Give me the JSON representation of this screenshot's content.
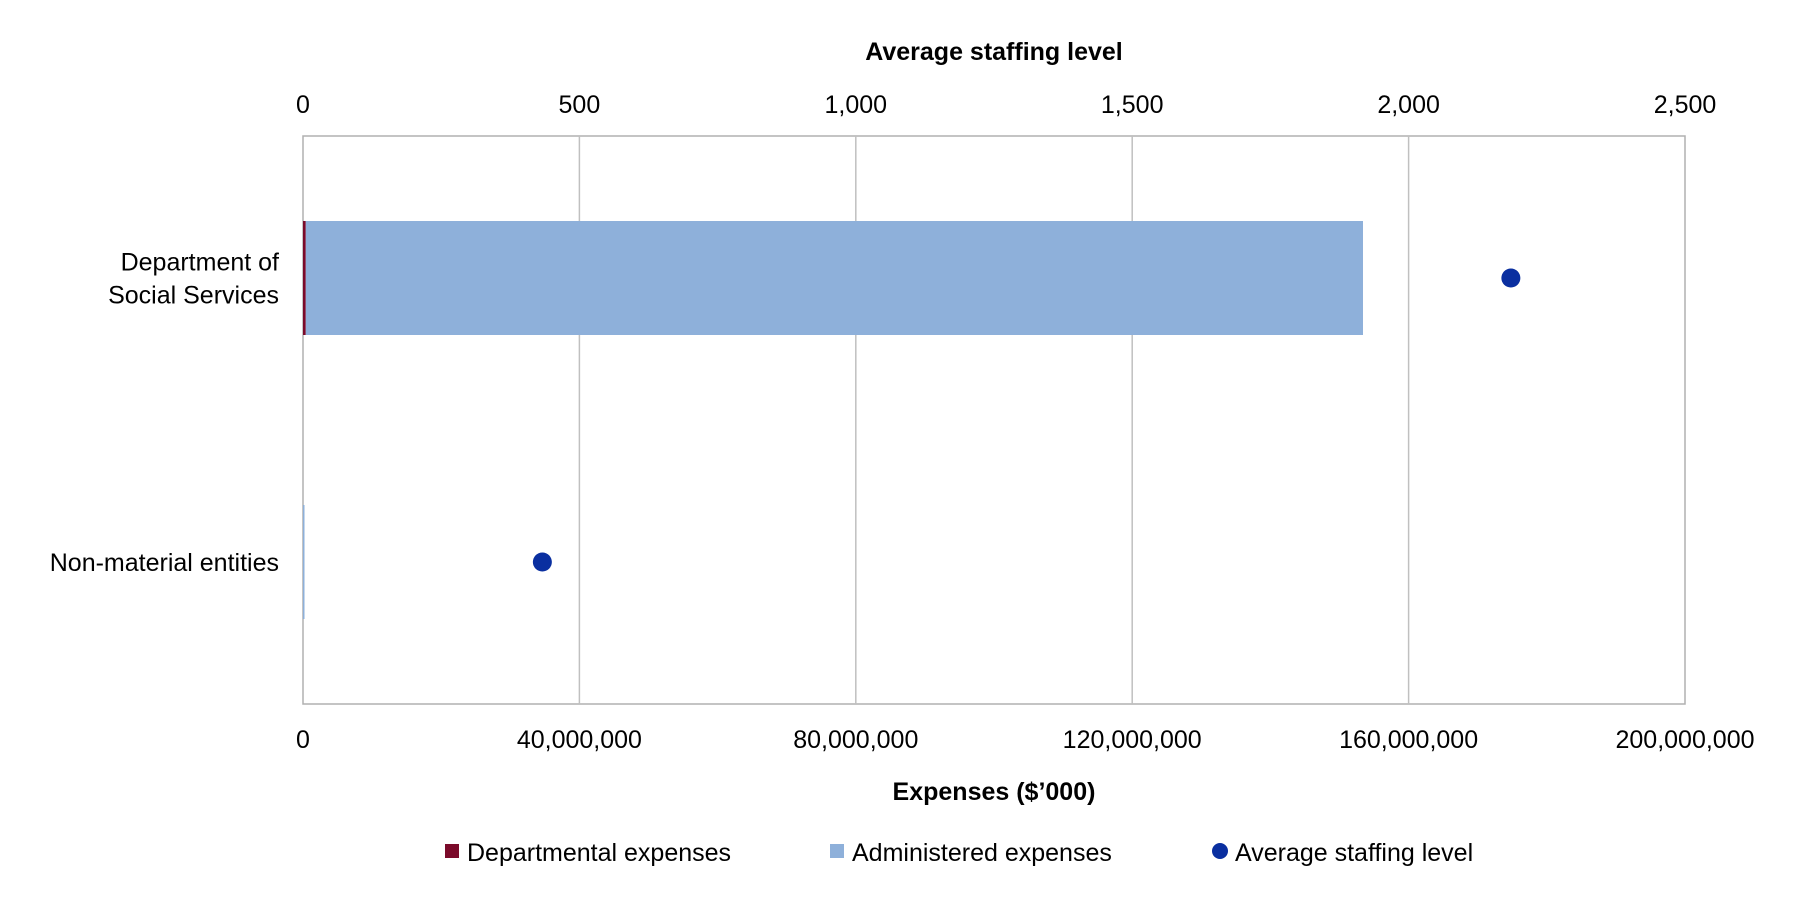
{
  "chart_data": {
    "type": "bar",
    "orientation": "horizontal",
    "stacked": true,
    "categories": [
      [
        "Department of",
        "Social Services"
      ],
      [
        "Non-material entities"
      ]
    ],
    "series": [
      {
        "name": "Departmental expenses",
        "type": "bar",
        "axis": "bottom",
        "values": [
          400000,
          0
        ],
        "color": "#7b0a2a"
      },
      {
        "name": "Administered expenses",
        "type": "bar",
        "axis": "bottom",
        "values": [
          153000000,
          10000
        ],
        "color": "#8eb0da"
      },
      {
        "name": "Average staffing level",
        "type": "scatter",
        "axis": "top",
        "values": [
          2185,
          433
        ],
        "color": "#0a2fa0"
      }
    ],
    "x_bottom": {
      "label": "Expenses ($’000)",
      "range": [
        0,
        200000000
      ],
      "ticks": [
        0,
        40000000,
        80000000,
        120000000,
        160000000,
        200000000
      ],
      "tick_labels": [
        "0",
        "40,000,000",
        "80,000,000",
        "120,000,000",
        "160,000,000",
        "200,000,000"
      ]
    },
    "x_top": {
      "label": "Average staffing level",
      "range": [
        0,
        2500
      ],
      "ticks": [
        0,
        500,
        1000,
        1500,
        2000,
        2500
      ],
      "tick_labels": [
        "0",
        "500",
        "1,000",
        "1,500",
        "2,000",
        "2,500"
      ]
    },
    "grid": true,
    "legend": "bottom",
    "colors": {
      "gridline": "#c0c0c0",
      "plot_border": "#b0b0b0"
    }
  }
}
